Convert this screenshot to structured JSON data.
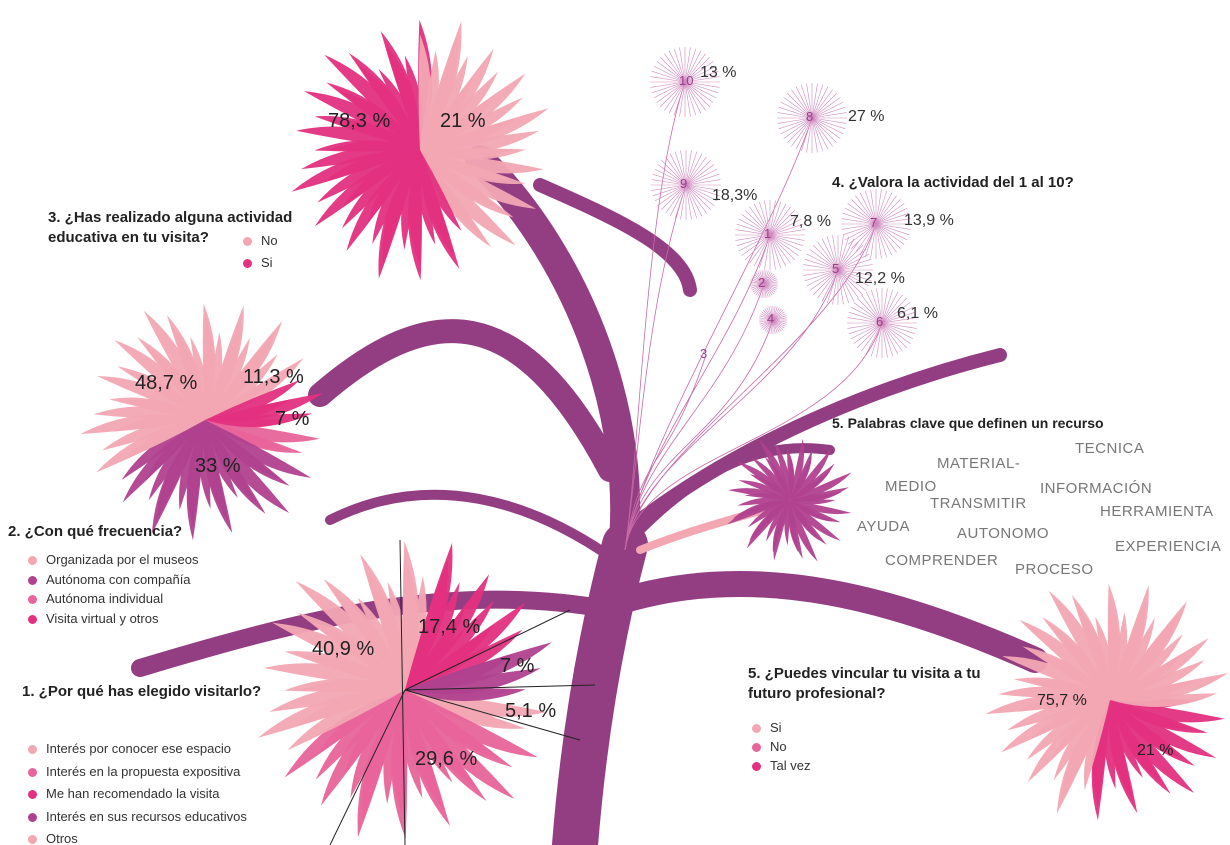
{
  "q3": {
    "title": "3. ¿Has realizado alguna actividad educativa en tu visita?",
    "legend": [
      "No",
      "Si"
    ],
    "labels": [
      "78,3 %",
      "21 %"
    ]
  },
  "q2": {
    "title": "2. ¿Con qué frecuencia?",
    "legend": [
      "Organizada por el museos",
      "Autónoma con compañía",
      "Autónoma individual",
      "Visita virtual y otros"
    ],
    "labels": [
      "48,7 %",
      "11,3 %",
      "7 %",
      "33 %"
    ]
  },
  "q1": {
    "title": "1. ¿Por qué has elegido visitarlo?",
    "legend": [
      "Interés por conocer ese espacio",
      "Interés en la propuesta expositiva",
      "Me han recomendado la visita",
      "Interés en sus recursos educativos",
      "Otros"
    ],
    "labels": [
      "40,9 %",
      "17,4 %",
      "7 %",
      "5,1 %",
      "29,6 %"
    ]
  },
  "q4": {
    "title": "4. ¿Valora la actividad del 1 al 10?",
    "scores": [
      {
        "n": "10",
        "label": "13 %"
      },
      {
        "n": "8",
        "label": "27 %"
      },
      {
        "n": "9",
        "label": "18,3%"
      },
      {
        "n": "1",
        "label": "7,8 %"
      },
      {
        "n": "7",
        "label": "13,9 %"
      },
      {
        "n": "2"
      },
      {
        "n": "5",
        "label": "12,2 %"
      },
      {
        "n": "4"
      },
      {
        "n": "6",
        "label": "6,1 %"
      },
      {
        "n": "3"
      }
    ]
  },
  "keywords": {
    "title": "5. Palabras clave que definen un recurso",
    "words": [
      "TECNICA",
      "MATERIAL-",
      "MEDIO",
      "INFORMACIÓN",
      "TRANSMITIR",
      "HERRAMIENTA",
      "AYUDA",
      "AUTONOMO",
      "EXPERIENCIA",
      "COMPRENDER",
      "PROCESO"
    ]
  },
  "q5": {
    "title": "5. ¿Puedes vincular tu visita a tu futuro profesional?",
    "legend": [
      "Si",
      "No",
      "Tal vez"
    ],
    "labels": [
      "75,7 %",
      "21 %"
    ]
  }
}
